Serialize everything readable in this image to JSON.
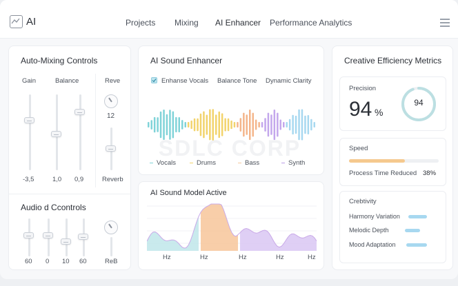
{
  "header": {
    "logo_text": "AI",
    "nav": [
      "Projects",
      "Mixing",
      "AI Enhancer",
      "Performance Analytics"
    ]
  },
  "auto_mixing": {
    "title": "Auto-Mixing Controls",
    "gain_label": "Gain",
    "balance_label": "Balance",
    "reverb_label": "Reve",
    "gain_value": "-3,5",
    "balance_value": "1,0",
    "balance2_value": "0,9",
    "reverb_knob_value": "12",
    "reverb_bottom": "Reverb",
    "slider_levels": [
      0.6,
      0.4,
      0.8,
      0.45
    ]
  },
  "audio_controls": {
    "title": "Audio d Ccontrols",
    "values": [
      "60",
      "0",
      "10",
      "60"
    ],
    "knob_label": "ReB",
    "slider_levels": [
      0.55,
      0.55,
      0.4,
      0.55
    ]
  },
  "enhancer": {
    "title": "AI Sound Enhancer",
    "option1": "Enhanse Vocals",
    "option1_checked": true,
    "option2": "Balance Tone",
    "option3": "Dynamic Clarity",
    "watermark": "SDLC CORP",
    "legend": [
      {
        "label": "Vocals",
        "color": "#7fd3d8"
      },
      {
        "label": "Drums",
        "color": "#f2d36b"
      },
      {
        "label": "Bass",
        "color": "#f4c89c"
      },
      {
        "label": "Synth",
        "color": "#b99be6"
      }
    ]
  },
  "model": {
    "title": "AI Sound Model Active",
    "x_labels": [
      "Hz",
      "Hz",
      "Hz",
      "Hz",
      "Hz"
    ]
  },
  "metrics": {
    "title": "Creative Efficiency Metrics",
    "precision_label": "Precision",
    "precision_value": "94",
    "precision_unit": "%",
    "ring_value": "94",
    "ring_fraction": 0.94,
    "speed_label": "Speed",
    "speed_fraction": 0.62,
    "process_label": "Process Time Reduced",
    "process_value": "38%",
    "creativity_label": "Crebtivity",
    "creativity_items": [
      {
        "label": "Harmony Variation",
        "fraction": 0.85
      },
      {
        "label": "Melodic Depth",
        "fraction": 0.7
      },
      {
        "label": "Mood Adaptation",
        "fraction": 0.95
      }
    ]
  },
  "colors": {
    "teal": "#7fd3d8",
    "yellow": "#f2d36b",
    "orange": "#f4b58a",
    "purple": "#c3a7ec",
    "blue": "#a7d8f0",
    "speed": "#f5c98e"
  }
}
